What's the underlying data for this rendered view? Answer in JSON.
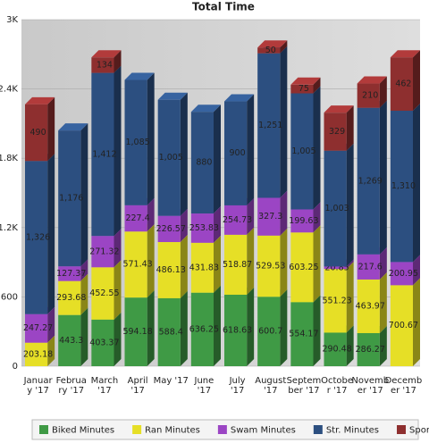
{
  "chart_data": {
    "type": "stacked-bar",
    "title": "Total Time",
    "categories": [
      "January '17",
      "February '17",
      "March '17",
      "April '17",
      "May '17",
      "June '17",
      "July '17",
      "August '17",
      "September '17",
      "October '17",
      "November '17",
      "December '17"
    ],
    "series": [
      {
        "name": "Biked Minutes",
        "color": "#3f9a45",
        "values": [
          null,
          443.3,
          403.37,
          594.18,
          588.4,
          636.25,
          618.63,
          600.7,
          554.17,
          290.48,
          286.27,
          null
        ]
      },
      {
        "name": "Ran Minutes",
        "color": "#e6df26",
        "values": [
          203.18,
          293.68,
          452.55,
          571.43,
          486.13,
          431.83,
          518.87,
          529.53,
          603.25,
          551.23,
          463.97,
          700.67
        ]
      },
      {
        "name": "Swam Minutes",
        "color": "#9b45c4",
        "values": [
          247.27,
          127.37,
          271.32,
          227.4,
          226.57,
          253.83,
          254.73,
          327.3,
          199.63,
          20.85,
          217.6,
          200.95
        ]
      },
      {
        "name": "Str. Minutes",
        "color": "#2c4f80",
        "values": [
          1326,
          1176,
          1412,
          1085,
          1005,
          880,
          900,
          1251,
          1005,
          1003,
          1269,
          1310
        ],
        "value_labels": [
          "1,326",
          "1,176",
          "1,412",
          "1,085",
          "1,005",
          "880",
          "900",
          "1,251",
          "1,005",
          "1,003",
          "1,269",
          "1,310"
        ]
      },
      {
        "name": "Sports Minutes",
        "color": "#8e2f2f",
        "values": [
          490,
          null,
          134,
          null,
          null,
          null,
          null,
          50,
          75,
          329,
          210,
          462
        ]
      }
    ],
    "ylim": [
      0,
      3000
    ],
    "yticks": [
      0,
      600,
      {
        "value": 1200,
        "label": "1.2K"
      },
      {
        "value": 1800,
        "label": "1.8K"
      },
      {
        "value": 2400,
        "label": "2.4K"
      },
      {
        "value": 3000,
        "label": "3K"
      }
    ],
    "grid": true,
    "legend": "bottom"
  }
}
